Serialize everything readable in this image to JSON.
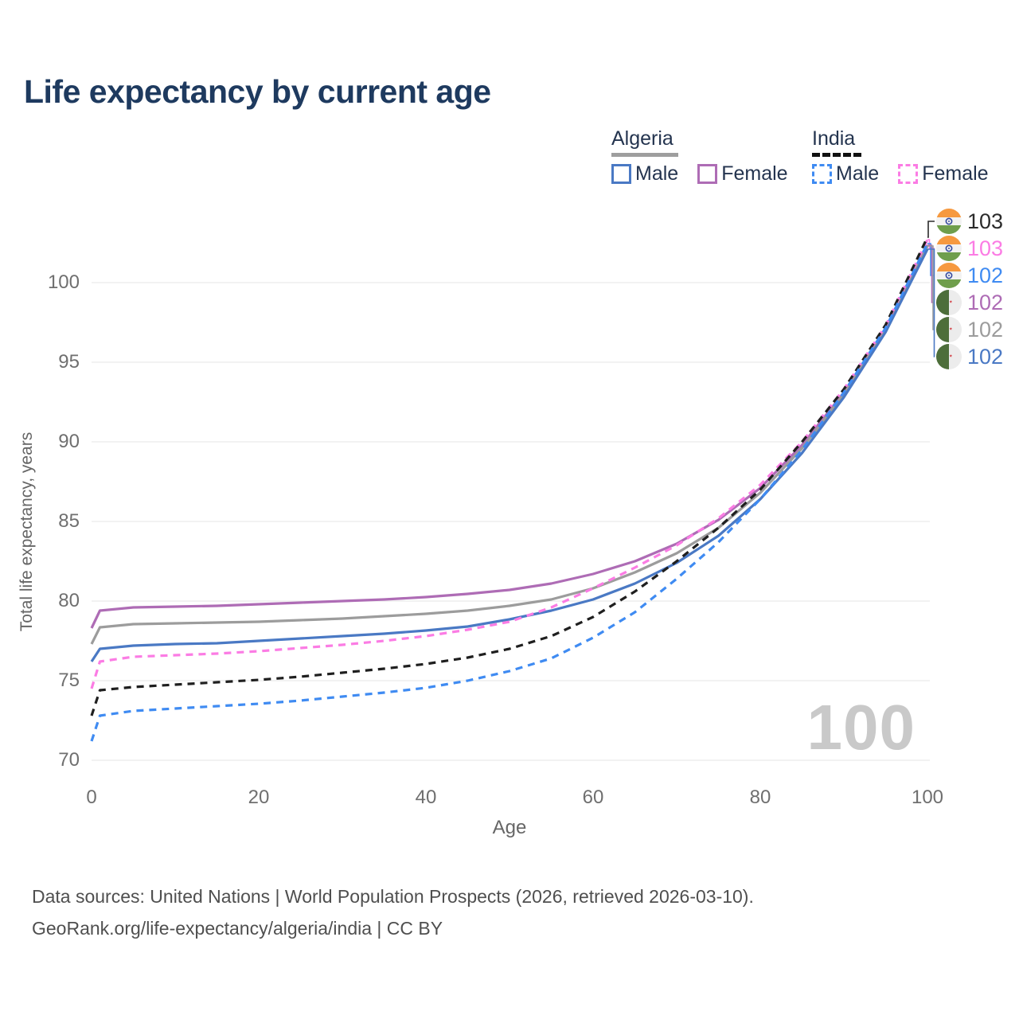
{
  "title": "Life expectancy by current age",
  "legend": {
    "groups": [
      {
        "label": "Algeria",
        "underline_color": "#9e9e9e",
        "underline_style": "solid",
        "items": [
          {
            "label": "Male",
            "color": "#4a79c4",
            "dash": false
          },
          {
            "label": "Female",
            "color": "#ae6cb5",
            "dash": false
          }
        ]
      },
      {
        "label": "India",
        "underline_color": "#111111",
        "underline_style": "dashed",
        "items": [
          {
            "label": "Male",
            "color": "#3f8bf2",
            "dash": true
          },
          {
            "label": "Female",
            "color": "#fb7ce4",
            "dash": true
          }
        ]
      }
    ]
  },
  "end_labels": [
    {
      "series": "india_total",
      "flag": "india-flag-icon",
      "value": "103",
      "color": "#2b2b2b"
    },
    {
      "series": "india_female",
      "flag": "india-flag-icon",
      "value": "103",
      "color": "#fb7ce4"
    },
    {
      "series": "india_male",
      "flag": "india-flag-icon",
      "value": "102",
      "color": "#3f8bf2"
    },
    {
      "series": "algeria_female",
      "flag": "algeria-flag-icon",
      "value": "102",
      "color": "#ae6cb5"
    },
    {
      "series": "algeria_total",
      "flag": "algeria-flag-icon",
      "value": "102",
      "color": "#9c9c9c"
    },
    {
      "series": "algeria_male",
      "flag": "algeria-flag-icon",
      "value": "102",
      "color": "#4a79c4"
    }
  ],
  "watermark": "100",
  "footer": {
    "line1": "Data sources: United Nations | World Population Prospects (2026, retrieved 2026-03-10).",
    "line2": "GeoRank.org/life-expectancy/algeria/india | CC BY"
  },
  "chart_data": {
    "type": "line",
    "title": "Life expectancy by current age",
    "xlabel": "Age",
    "ylabel": "Total life expectancy, years",
    "xlim": [
      0,
      100
    ],
    "ylim": [
      70,
      103
    ],
    "grid": "horizontal",
    "x_ticks": [
      0,
      20,
      40,
      60,
      80,
      100
    ],
    "y_ticks": [
      70,
      75,
      80,
      85,
      90,
      95,
      100
    ],
    "x": [
      0,
      1,
      5,
      10,
      15,
      20,
      25,
      30,
      35,
      40,
      45,
      50,
      55,
      60,
      65,
      70,
      75,
      80,
      85,
      90,
      95,
      100
    ],
    "series": [
      {
        "id": "algeria_female",
        "name": "Algeria Female",
        "color": "#ae6cb5",
        "dash": false,
        "values": [
          78.3,
          79.4,
          79.6,
          79.65,
          79.7,
          79.8,
          79.9,
          80.0,
          80.1,
          80.25,
          80.45,
          80.7,
          81.1,
          81.7,
          82.5,
          83.6,
          85.1,
          87.1,
          89.8,
          93.1,
          97.1,
          102.35
        ]
      },
      {
        "id": "algeria_total",
        "name": "Algeria (both sexes)",
        "color": "#9c9c9c",
        "dash": false,
        "values": [
          77.3,
          78.35,
          78.55,
          78.6,
          78.65,
          78.7,
          78.8,
          78.9,
          79.05,
          79.2,
          79.4,
          79.7,
          80.1,
          80.8,
          81.8,
          83.0,
          84.6,
          86.8,
          89.6,
          93.0,
          97.0,
          102.3
        ]
      },
      {
        "id": "algeria_male",
        "name": "Algeria Male",
        "color": "#4a79c4",
        "dash": false,
        "values": [
          76.2,
          77.0,
          77.2,
          77.3,
          77.35,
          77.5,
          77.65,
          77.8,
          77.95,
          78.15,
          78.4,
          78.85,
          79.4,
          80.1,
          81.1,
          82.4,
          84.1,
          86.4,
          89.3,
          92.8,
          96.9,
          102.1
        ]
      },
      {
        "id": "india_female",
        "name": "India Female",
        "color": "#fb7ce4",
        "dash": true,
        "values": [
          74.5,
          76.2,
          76.5,
          76.6,
          76.7,
          76.85,
          77.05,
          77.25,
          77.5,
          77.8,
          78.2,
          78.7,
          79.6,
          80.8,
          82.1,
          83.5,
          85.2,
          87.3,
          90.0,
          93.3,
          97.3,
          102.7
        ]
      },
      {
        "id": "india_total",
        "name": "India (both sexes)",
        "color": "#1f1f1f",
        "dash": true,
        "values": [
          72.8,
          74.4,
          74.6,
          74.75,
          74.9,
          75.05,
          75.25,
          75.5,
          75.75,
          76.05,
          76.45,
          77.0,
          77.8,
          79.0,
          80.6,
          82.5,
          84.6,
          87.0,
          90.0,
          93.3,
          97.35,
          102.85
        ]
      },
      {
        "id": "india_male",
        "name": "India Male",
        "color": "#3f8bf2",
        "dash": true,
        "values": [
          71.2,
          72.8,
          73.1,
          73.25,
          73.4,
          73.55,
          73.75,
          74.0,
          74.25,
          74.55,
          75.0,
          75.6,
          76.4,
          77.7,
          79.3,
          81.4,
          83.7,
          86.4,
          89.5,
          93.1,
          97.15,
          102.45
        ]
      }
    ],
    "end_value_labels": [
      103,
      103,
      102,
      102,
      102,
      102
    ],
    "legend_position": "top-right"
  }
}
